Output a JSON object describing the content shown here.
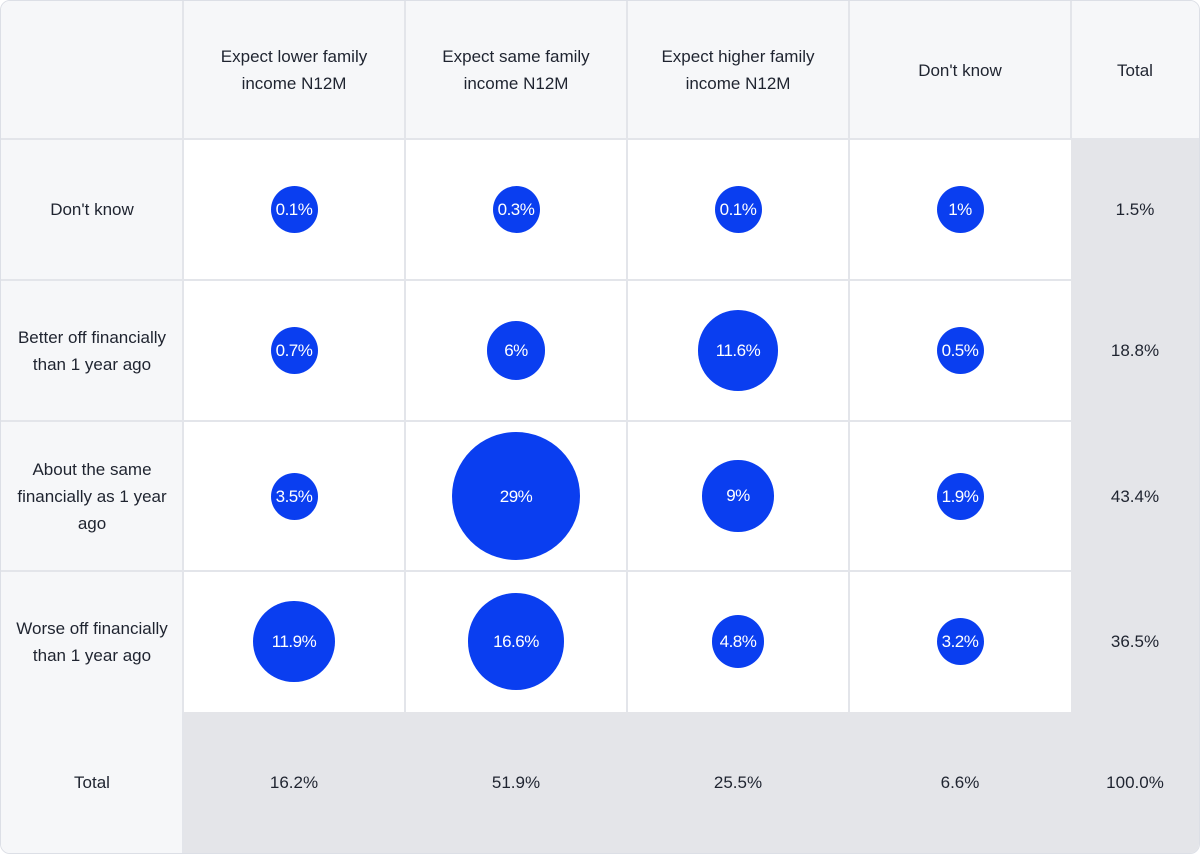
{
  "chart_data": {
    "type": "table",
    "title": "",
    "columns": [
      "Expect lower family income N12M",
      "Expect same family income N12M",
      "Expect higher family income N12M",
      "Don't know"
    ],
    "total_label": "Total",
    "rows": [
      {
        "label": "Don't know",
        "values": [
          0.1,
          0.3,
          0.1,
          1
        ],
        "labels": [
          "0.1%",
          "0.3%",
          "0.1%",
          "1%"
        ],
        "total": "1.5%"
      },
      {
        "label": "Better off financially than 1 year ago",
        "values": [
          0.7,
          6,
          11.6,
          0.5
        ],
        "labels": [
          "0.7%",
          "6%",
          "11.6%",
          "0.5%"
        ],
        "total": "18.8%"
      },
      {
        "label": "About the same financially as 1 year ago",
        "values": [
          3.5,
          29,
          9,
          1.9
        ],
        "labels": [
          "3.5%",
          "29%",
          "9%",
          "1.9%"
        ],
        "total": "43.4%"
      },
      {
        "label": "Worse off financially than 1 year ago",
        "values": [
          11.9,
          16.6,
          4.8,
          3.2
        ],
        "labels": [
          "11.9%",
          "16.6%",
          "4.8%",
          "3.2%"
        ],
        "total": "36.5%"
      }
    ],
    "column_totals": [
      "16.2%",
      "51.9%",
      "25.5%",
      "6.6%"
    ],
    "grand_total": "100.0%",
    "bubble_color": "#0a3ef0"
  }
}
